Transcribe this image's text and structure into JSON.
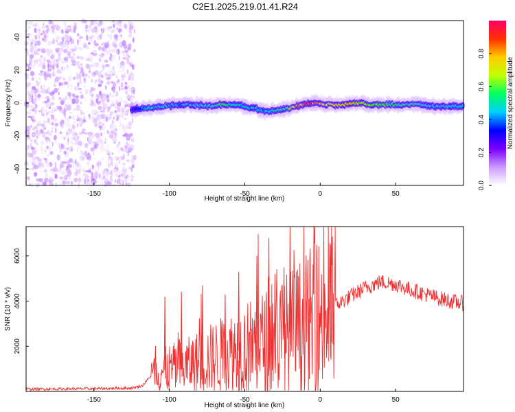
{
  "title": "C2E1.2025.219.01.41.R24",
  "chart_data": [
    {
      "type": "heatmap",
      "xlabel": "Height of straight line (km)",
      "ylabel": "Frequency (Hz)",
      "xlim": [
        -195,
        95
      ],
      "ylim": [
        -50,
        50
      ],
      "xticks": [
        -150,
        -100,
        -50,
        0,
        50
      ],
      "yticks": [
        -40,
        -20,
        0,
        20,
        40
      ],
      "colorbar": {
        "label": "Normalized spectral amplitude",
        "range": [
          0,
          1
        ],
        "ticks": [
          "0.0",
          "0.2",
          "0.4",
          "0.6",
          "0.8"
        ],
        "colors": [
          "#ffffff",
          "#cc99ff",
          "#7a00ff",
          "#0000ff",
          "#00d0ff",
          "#00ff60",
          "#c0ff00",
          "#ffcc00",
          "#ff3000",
          "#ff0066"
        ]
      },
      "noise_region_x": [
        -195,
        -123
      ],
      "ridge": {
        "x": [
          -125,
          -115,
          -105,
          -95,
          -85,
          -75,
          -65,
          -55,
          -45,
          -35,
          -25,
          -15,
          -5,
          5,
          15,
          25,
          35,
          45,
          55,
          65,
          75,
          85,
          95
        ],
        "frequency": [
          -4,
          -3,
          -2,
          -1,
          -1,
          -2,
          -1,
          -1,
          -3,
          -5,
          -4,
          -2,
          0,
          -1,
          -1,
          0,
          -1,
          -1,
          -1,
          -1,
          -2,
          -2,
          -2
        ],
        "amplitude": [
          0.3,
          0.45,
          0.5,
          0.45,
          0.5,
          0.55,
          0.6,
          0.5,
          0.45,
          0.45,
          0.55,
          0.85,
          0.95,
          0.75,
          0.8,
          0.75,
          0.65,
          0.6,
          0.55,
          0.55,
          0.5,
          0.5,
          0.5
        ]
      }
    },
    {
      "type": "line",
      "xlabel": "Height of straight line (km)",
      "ylabel": "SNR (10 * v/v)",
      "xlim": [
        -195,
        95
      ],
      "ylim": [
        0,
        7300
      ],
      "xticks": [
        -150,
        -100,
        -50,
        0,
        50
      ],
      "yticks": [
        2000,
        4000,
        6000
      ],
      "color": "#f03030",
      "envelope": {
        "x": [
          -195,
          -150,
          -125,
          -118,
          -112,
          -105,
          -100,
          -90,
          -80,
          -70,
          -60,
          -50,
          -40,
          -30,
          -20,
          -10,
          0,
          10,
          20,
          30,
          40,
          50,
          60,
          70,
          80,
          90,
          95
        ],
        "base": [
          100,
          120,
          150,
          250,
          700,
          900,
          1000,
          1100,
          1300,
          1500,
          1700,
          1900,
          2100,
          2300,
          2600,
          2900,
          3300,
          3800,
          4200,
          4600,
          4850,
          4750,
          4500,
          4300,
          4100,
          3950,
          3900
        ]
      },
      "spikes": [
        {
          "x": -103,
          "y": 4200
        },
        {
          "x": -92,
          "y": 4400
        },
        {
          "x": -78,
          "y": 4700
        },
        {
          "x": -63,
          "y": 4300
        },
        {
          "x": -54,
          "y": 5300
        },
        {
          "x": -42,
          "y": 6000
        },
        {
          "x": -34,
          "y": 6800
        },
        {
          "x": -30,
          "y": 5200
        },
        {
          "x": -24,
          "y": 5500
        },
        {
          "x": -20,
          "y": 7300
        },
        {
          "x": 7,
          "y": 6500
        }
      ]
    }
  ]
}
